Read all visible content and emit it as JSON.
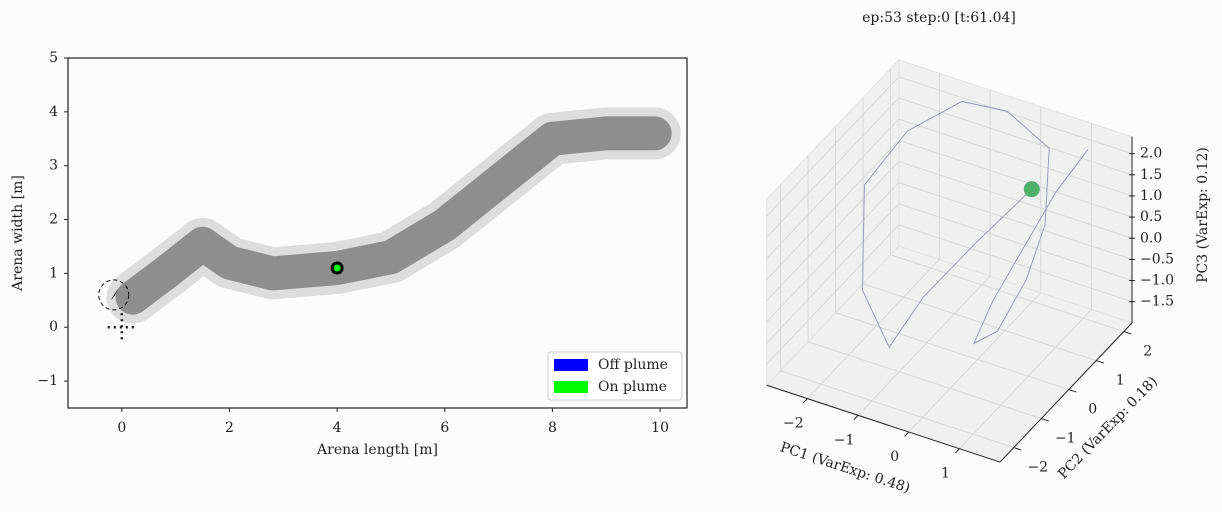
{
  "chart_data": [
    {
      "type": "plume",
      "xlabel": "Arena length [m]",
      "ylabel": "Arena width [m]",
      "xlim": [
        -1.0,
        10.5
      ],
      "ylim": [
        -1.5,
        5
      ],
      "xticks": [
        0,
        2,
        4,
        6,
        8,
        10
      ],
      "yticks": [
        {
          "value": -1,
          "label": "−1"
        },
        0,
        1,
        2,
        3,
        4,
        5
      ],
      "plume": {
        "color": "#808080",
        "x": [
          0.2,
          0.8,
          1.5,
          2.0,
          2.8,
          4.0,
          5.0,
          6.0,
          7.0,
          7.5,
          8.0,
          9.0,
          9.9
        ],
        "y": [
          0.55,
          1.0,
          1.55,
          1.2,
          1.0,
          1.1,
          1.3,
          1.9,
          2.7,
          3.1,
          3.5,
          3.6,
          3.6
        ]
      },
      "agent": {
        "x": 4.0,
        "y": 1.1,
        "color": "#00ff00"
      },
      "start": {
        "x": -0.15,
        "y": 0.6
      },
      "source": {
        "x": 0,
        "y": 0
      },
      "legend": "lower right",
      "series": [
        {
          "name": "Off plume",
          "color": "#0000ff"
        },
        {
          "name": "On plume",
          "color": "#00ff00"
        }
      ]
    },
    {
      "type": "line3d",
      "title": "ep:53 step:0 [t:61.04]",
      "xlabel": "PC1 (VarExp: 0.48)",
      "ylabel": "PC2 (VarExp: 0.18)",
      "zlabel": "PC3 (VarExp: 0.12)",
      "xlim": [
        -2.8,
        1.8
      ],
      "ylim": [
        -2.5,
        2.3
      ],
      "zlim": [
        -2.0,
        2.4
      ],
      "xticks": [
        {
          "value": -2,
          "label": "−2"
        },
        {
          "value": -1,
          "label": "−1"
        },
        0,
        1
      ],
      "yticks": [
        {
          "value": -2,
          "label": "−2"
        },
        {
          "value": -1,
          "label": "−1"
        },
        0,
        1,
        2
      ],
      "zticks": [
        {
          "value": -1.5,
          "label": "−1.5"
        },
        {
          "value": -1,
          "label": "−1.0"
        },
        {
          "value": -0.5,
          "label": "−0.5"
        },
        {
          "value": 0,
          "label": "0.0"
        },
        {
          "value": 0.5,
          "label": "0.5"
        },
        {
          "value": 1,
          "label": "1.0"
        },
        {
          "value": 1.5,
          "label": "1.5"
        },
        {
          "value": 2,
          "label": "2.0"
        }
      ],
      "line_color": "#9a9fb5",
      "x": [
        1.2,
        0.9,
        0.6,
        0.3,
        0.2,
        0.5,
        0.8,
        0.9,
        0.6,
        -0.5,
        -1.5,
        -2.2,
        -2.5,
        -2.0,
        -1.2,
        -0.8,
        -0.3,
        0.8
      ],
      "y": [
        1.8,
        1.2,
        0.6,
        0.0,
        -0.5,
        -0.2,
        0.3,
        0.8,
        1.5,
        2.0,
        2.2,
        1.5,
        0.5,
        -0.5,
        -1.0,
        -0.5,
        0.5,
        0.5
      ],
      "z": [
        2.2,
        1.5,
        0.5,
        -0.5,
        -1.2,
        -1.0,
        0.0,
        1.0,
        2.2,
        2.3,
        2.0,
        1.5,
        0.8,
        -0.8,
        -1.5,
        -0.5,
        0.3,
        2.0
      ],
      "current": {
        "x": 0.8,
        "y": 0.5,
        "z": 2.0,
        "color": "#4caf6a"
      }
    }
  ]
}
